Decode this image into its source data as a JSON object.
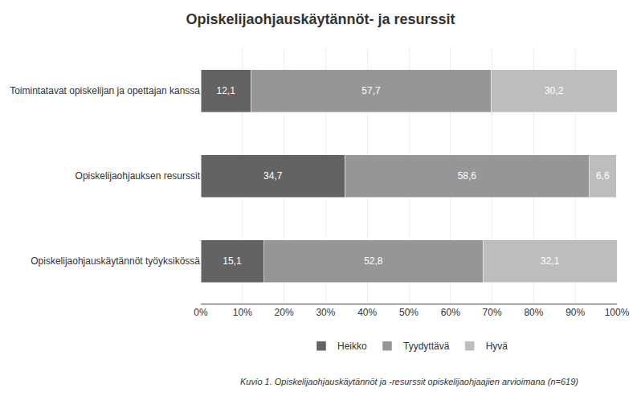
{
  "chart_data": {
    "type": "bar",
    "orientation": "horizontal",
    "stacked": true,
    "title": "Opiskelijaohjauskäytännöt- ja resurssit",
    "caption": "Kuvio 1. Opiskelijaohjauskäytännöt ja -resurssit opiskelijaohjaajien arvioimana (n=619)",
    "categories": [
      "Toimintatavat opiskelijan ja opettajan kanssa",
      "Opiskelijaohjauksen resurssit",
      "Opiskelijaohjauskäytännöt työyksikössä"
    ],
    "series": [
      {
        "name": "Heikko",
        "color": "#636363",
        "values": [
          12.1,
          34.7,
          15.1
        ],
        "value_labels": [
          "12,1",
          "34,7",
          "15,1"
        ]
      },
      {
        "name": "Tyydyttävä",
        "color": "#969696",
        "values": [
          57.7,
          58.6,
          52.8
        ],
        "value_labels": [
          "57,7",
          "58,6",
          "52,8"
        ]
      },
      {
        "name": "Hyvä",
        "color": "#bdbdbd",
        "values": [
          30.2,
          6.6,
          32.1
        ],
        "value_labels": [
          "30,2",
          "6,6",
          "32,1"
        ]
      }
    ],
    "xlim": [
      0,
      100
    ],
    "xticks": [
      {
        "value": 0,
        "label": "0%"
      },
      {
        "value": 10,
        "label": "10%"
      },
      {
        "value": 20,
        "label": "20%"
      },
      {
        "value": 30,
        "label": "30%"
      },
      {
        "value": 40,
        "label": "40%"
      },
      {
        "value": 50,
        "label": "50%"
      },
      {
        "value": 60,
        "label": "60%"
      },
      {
        "value": 70,
        "label": "70%"
      },
      {
        "value": 80,
        "label": "80%"
      },
      {
        "value": 90,
        "label": "90%"
      },
      {
        "value": 100,
        "label": "100%"
      }
    ],
    "grid": true,
    "data_labels": true,
    "legend": "bottom"
  }
}
